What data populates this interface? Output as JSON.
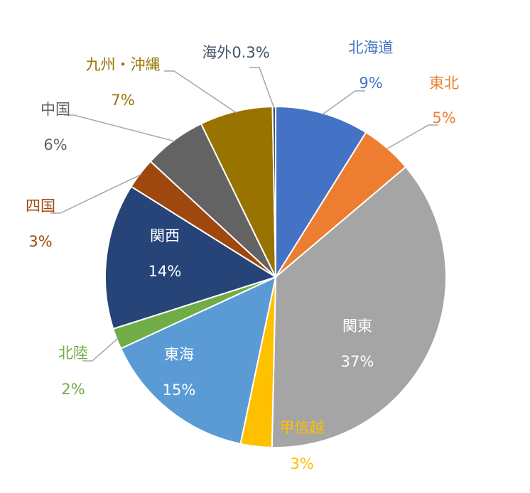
{
  "chart_data": {
    "type": "pie",
    "categories": [
      "北海道",
      "東北",
      "関東",
      "甲信越",
      "東海",
      "北陸",
      "関西",
      "四国",
      "中国",
      "九州・沖縄",
      "海外"
    ],
    "values": [
      9,
      5,
      37,
      3,
      15,
      2,
      14,
      3,
      6,
      7,
      0.3
    ],
    "value_labels": [
      "9%",
      "5%",
      "37%",
      "3%",
      "15%",
      "2%",
      "14%",
      "3%",
      "6%",
      "7%",
      "0.3%"
    ],
    "colors": [
      "#4472c4",
      "#ed7d31",
      "#a5a5a5",
      "#ffc000",
      "#5b9bd5",
      "#70ad47",
      "#264478",
      "#9e480e",
      "#636363",
      "#997300",
      "#44546a"
    ]
  }
}
